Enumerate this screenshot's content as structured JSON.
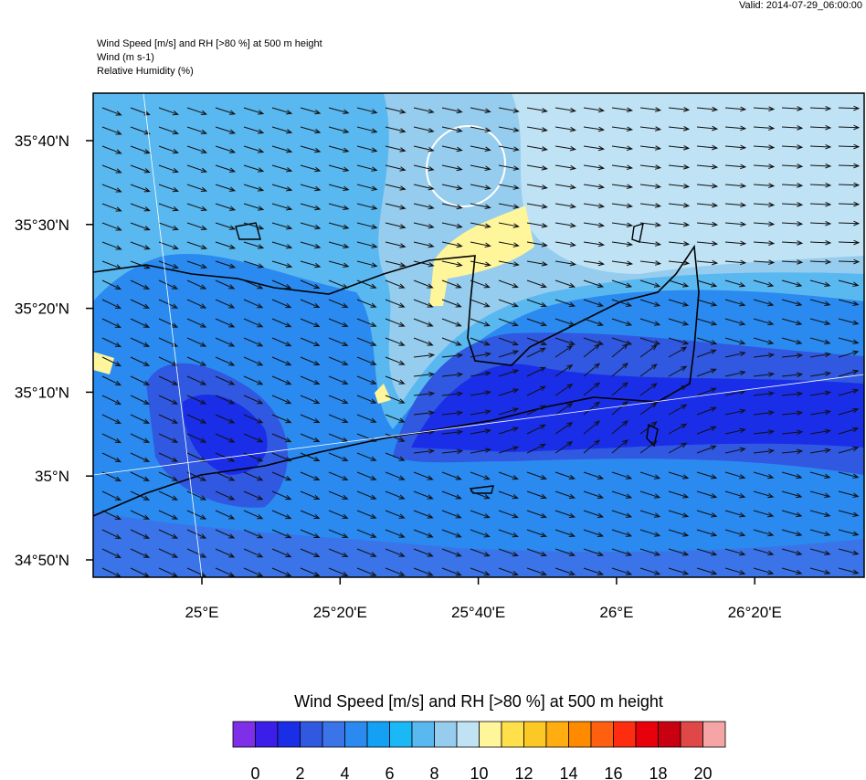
{
  "header": {
    "valid": "Valid: 2014-07-29_06:00:00",
    "title_lines": [
      "Wind Speed [m/s] and RH [>80 %] at 500 m height",
      "Wind   (m s-1)",
      "Relative Humidity   (%)"
    ]
  },
  "map": {
    "lat_labels": [
      "35°40'N",
      "35°30'N",
      "35°20'N",
      "35°10'N",
      "35°N",
      "34°50'N"
    ],
    "lon_labels": [
      "25°E",
      "25°20'E",
      "25°40'E",
      "26°E",
      "26°20'E"
    ]
  },
  "colorbar": {
    "title": "Wind Speed [m/s] and RH [>80 %] at 500 m height",
    "colors": [
      "#7f2fe8",
      "#3b1ee8",
      "#1a2ee8",
      "#3158e0",
      "#3a74e8",
      "#2a8af0",
      "#14a0f5",
      "#1ab8f5",
      "#5ab8f0",
      "#96cdee",
      "#bfe3f5",
      "#fff59a",
      "#ffe04a",
      "#fcc825",
      "#ffad10",
      "#ff8a00",
      "#ff6010",
      "#ff2d10",
      "#e8000a",
      "#c80010",
      "#e04848",
      "#f5a5a5"
    ],
    "labels": [
      "0",
      "2",
      "4",
      "6",
      "8",
      "10",
      "12",
      "14",
      "16",
      "18",
      "20"
    ]
  }
}
